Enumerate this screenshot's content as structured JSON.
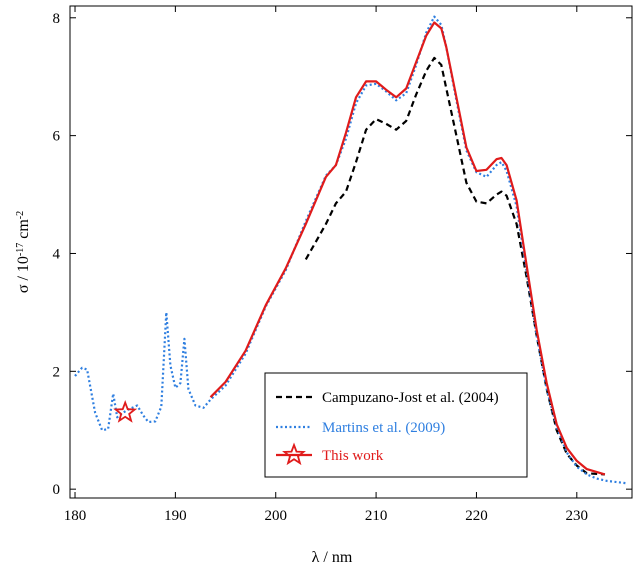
{
  "chart_data": {
    "type": "line",
    "xlabel": "λ / nm",
    "ylabel_parts": [
      "σ / 10",
      "-17",
      " cm",
      "-2"
    ],
    "xlim": [
      179.5,
      235.5
    ],
    "ylim": [
      -0.15,
      8.2
    ],
    "xticks": [
      180,
      190,
      200,
      210,
      220,
      230
    ],
    "yticks": [
      0,
      2,
      4,
      6,
      8
    ],
    "grid": false,
    "legend_position": "lower-right",
    "series": [
      {
        "name": "Campuzano-Jost et al. (2004)",
        "color": "#000000",
        "style": "dashed",
        "x": [
          203,
          204,
          205,
          206,
          207,
          208,
          209,
          210,
          211,
          212,
          213,
          214,
          215,
          215.8,
          216.5,
          217,
          218,
          219,
          220,
          221,
          222,
          222.5,
          223,
          224,
          225,
          226,
          227,
          228,
          229,
          230,
          231,
          232.8
        ],
        "y": [
          3.9,
          4.2,
          4.5,
          4.85,
          5.05,
          5.55,
          6.1,
          6.28,
          6.2,
          6.1,
          6.25,
          6.7,
          7.1,
          7.32,
          7.2,
          6.8,
          6.0,
          5.2,
          4.88,
          4.85,
          5.0,
          5.05,
          4.98,
          4.5,
          3.6,
          2.6,
          1.7,
          1.0,
          0.6,
          0.4,
          0.27,
          0.25
        ]
      },
      {
        "name": "Martins et al. (2009)",
        "color": "#2f7fe0",
        "style": "dotted",
        "x": [
          180,
          180.7,
          181.2,
          182,
          182.7,
          183.3,
          183.8,
          184.2,
          184.8,
          185.3,
          186.2,
          186.8,
          187.3,
          188,
          188.6,
          189.1,
          189.5,
          190,
          190.5,
          190.9,
          191.3,
          192,
          192.8,
          193.5,
          195,
          197,
          199,
          201,
          203,
          205,
          206,
          207,
          208,
          209,
          210,
          211,
          212,
          213,
          214,
          215,
          215.8,
          216.5,
          217,
          218,
          219,
          220,
          221,
          222,
          222.5,
          223,
          224,
          225,
          226,
          227,
          228,
          229,
          230,
          231,
          232,
          233,
          234,
          235
        ],
        "y": [
          1.92,
          2.06,
          2.03,
          1.3,
          1.0,
          1.02,
          1.62,
          1.22,
          1.3,
          1.35,
          1.42,
          1.25,
          1.14,
          1.15,
          1.4,
          3.0,
          2.1,
          1.72,
          1.8,
          2.55,
          1.7,
          1.42,
          1.38,
          1.52,
          1.76,
          2.3,
          3.1,
          3.72,
          4.55,
          5.32,
          5.5,
          5.95,
          6.55,
          6.85,
          6.88,
          6.75,
          6.6,
          6.72,
          7.2,
          7.75,
          8.02,
          7.88,
          7.5,
          6.6,
          5.75,
          5.38,
          5.3,
          5.5,
          5.55,
          5.4,
          4.8,
          3.7,
          2.6,
          1.7,
          1.05,
          0.62,
          0.38,
          0.25,
          0.18,
          0.14,
          0.12,
          0.1
        ]
      },
      {
        "name": "This work",
        "color": "#e01b1b",
        "style": "solid",
        "x": [
          193.5,
          195,
          197,
          199,
          201,
          203,
          205,
          206,
          207,
          208,
          209,
          210,
          211,
          212,
          213,
          214,
          215,
          215.8,
          216.5,
          217,
          218,
          219,
          220,
          221,
          222,
          222.5,
          223,
          224,
          225,
          226,
          227,
          228,
          229,
          230,
          231,
          232.8
        ],
        "y": [
          1.56,
          1.82,
          2.35,
          3.12,
          3.75,
          4.5,
          5.3,
          5.5,
          6.05,
          6.65,
          6.92,
          6.92,
          6.78,
          6.65,
          6.8,
          7.25,
          7.7,
          7.92,
          7.82,
          7.5,
          6.65,
          5.8,
          5.4,
          5.42,
          5.6,
          5.62,
          5.5,
          4.9,
          3.8,
          2.7,
          1.8,
          1.1,
          0.7,
          0.48,
          0.34,
          0.25
        ]
      }
    ],
    "markers": [
      {
        "series": "This work",
        "x": 185,
        "y": 1.3,
        "symbol": "star"
      }
    ]
  }
}
